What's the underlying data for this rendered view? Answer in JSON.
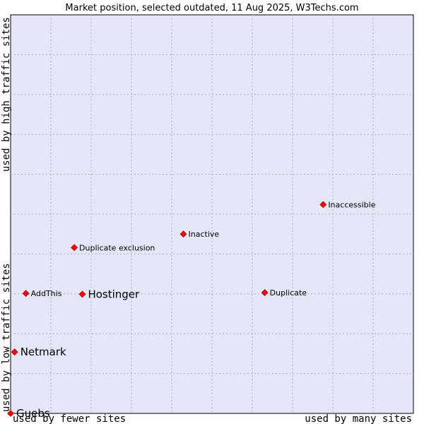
{
  "chart_data": {
    "type": "scatter",
    "title": "Market position, selected outdated, 11 Aug 2025, W3Techs.com",
    "xlabel_left": "used by fewer sites",
    "xlabel_right": "used by many sites",
    "ylabel_bottom": "used by low traffic sites",
    "ylabel_top": "used by high traffic sites",
    "xlim": [
      0,
      100
    ],
    "ylim": [
      0,
      100
    ],
    "grid": true,
    "colors": {
      "plot_background": "#e6e6f8",
      "grid": "#aaaacc",
      "point": "#ff0000",
      "point_outline": "#990000"
    },
    "points": [
      {
        "label": "Inaccessible",
        "x": 77.6,
        "y": 52.4,
        "highlight": false
      },
      {
        "label": "Inactive",
        "x": 42.9,
        "y": 45.0,
        "highlight": false
      },
      {
        "label": "Duplicate exclusion",
        "x": 15.8,
        "y": 41.6,
        "highlight": false
      },
      {
        "label": "AddThis",
        "x": 3.8,
        "y": 30.1,
        "highlight": false
      },
      {
        "label": "Hostinger",
        "x": 17.8,
        "y": 29.9,
        "highlight": true
      },
      {
        "label": "Duplicate",
        "x": 63.1,
        "y": 30.3,
        "highlight": false
      },
      {
        "label": "Netmark",
        "x": 1.0,
        "y": 15.4,
        "highlight": true
      },
      {
        "label": "Guebs",
        "x": 0.0,
        "y": 0.0,
        "highlight": true
      }
    ]
  }
}
